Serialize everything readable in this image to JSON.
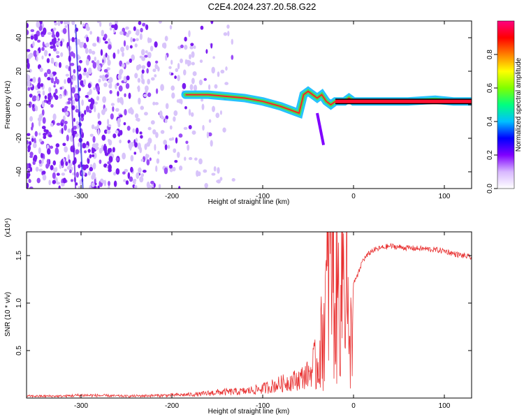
{
  "title": "C2E4.2024.237.20.58.G22",
  "chart_data": [
    {
      "type": "heatmap",
      "xlabel": "Height of straight line (km)",
      "ylabel": "Frequency (Hz)",
      "xlim": [
        -360,
        130
      ],
      "ylim": [
        -50,
        50
      ],
      "x_ticks": [
        -300,
        -200,
        -100,
        0,
        100
      ],
      "y_ticks": [
        -40,
        -20,
        0,
        20,
        40
      ],
      "colorbar": {
        "label": "Normalized spectral amplitude",
        "range": [
          0,
          1
        ],
        "ticks": [
          "0.0",
          "0.2",
          "0.4",
          "0.6",
          "0.8"
        ],
        "colors": [
          "#ffffff",
          "#d8b8ff",
          "#8000ff",
          "#0000ff",
          "#00c0ff",
          "#00ff80",
          "#80ff00",
          "#ffff00",
          "#ff8000",
          "#ff0000",
          "#ff0080"
        ]
      },
      "ridge": {
        "x": [
          -185,
          -160,
          -140,
          -120,
          -100,
          -80,
          -70,
          -60,
          -55,
          -50,
          -45,
          -40,
          -35,
          -30,
          -25,
          -20,
          -10,
          -5,
          0,
          20,
          60,
          90,
          110,
          130
        ],
        "y": [
          6,
          6,
          5,
          4,
          2,
          -1,
          -3,
          -5,
          6,
          8,
          6,
          4,
          6,
          2,
          0,
          2,
          2,
          4,
          2,
          2,
          2,
          3,
          2,
          2
        ]
      }
    },
    {
      "type": "line",
      "xlabel": "Height of straight line (km)",
      "ylabel": "SNR (10 * v/v)",
      "y_multiplier": "(x10⁴)",
      "xlim": [
        -360,
        130
      ],
      "ylim": [
        0,
        1.75
      ],
      "x_ticks": [
        -300,
        -200,
        -100,
        0,
        100
      ],
      "y_ticks": [
        "0.5",
        "1.0",
        "1.5"
      ],
      "series": [
        {
          "color": "#e83030",
          "x": [
            -360,
            -320,
            -300,
            -250,
            -200,
            -170,
            -150,
            -120,
            -100,
            -80,
            -60,
            -50,
            -40,
            -35,
            -30,
            -25,
            -20,
            -15,
            -10,
            -8,
            -5,
            0,
            5,
            10,
            20,
            30,
            40,
            60,
            80,
            100,
            110,
            120,
            130
          ],
          "y": [
            0.02,
            0.02,
            0.03,
            0.02,
            0.03,
            0.04,
            0.06,
            0.07,
            0.1,
            0.15,
            0.2,
            0.25,
            0.35,
            0.6,
            1.0,
            1.7,
            0.9,
            1.2,
            1.4,
            1.75,
            0.3,
            1.2,
            1.3,
            1.45,
            1.55,
            1.58,
            1.6,
            1.58,
            1.57,
            1.55,
            1.52,
            1.5,
            1.48
          ]
        }
      ]
    }
  ]
}
